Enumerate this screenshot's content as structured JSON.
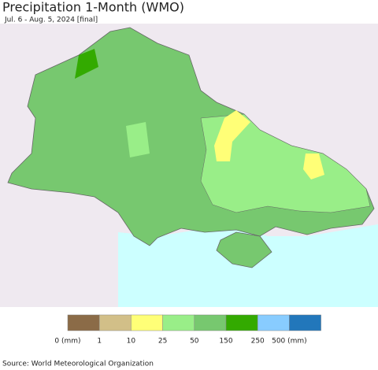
{
  "header": {
    "title": "Precipitation 1-Month (WMO)",
    "subtitle": "Jul. 6 - Aug. 5, 2024 [final]"
  },
  "legend": {
    "colors": [
      "#8b6b47",
      "#d2bf88",
      "#ffff77",
      "#99ee88",
      "#77c86f",
      "#33aa00",
      "#88ccff",
      "#2277bb"
    ],
    "labels": [
      "0 (mm)",
      "1",
      "10",
      "25",
      "50",
      "150",
      "250",
      "500 (mm)"
    ]
  },
  "footer": {
    "source": "Source: World Meteorological Organization"
  }
}
